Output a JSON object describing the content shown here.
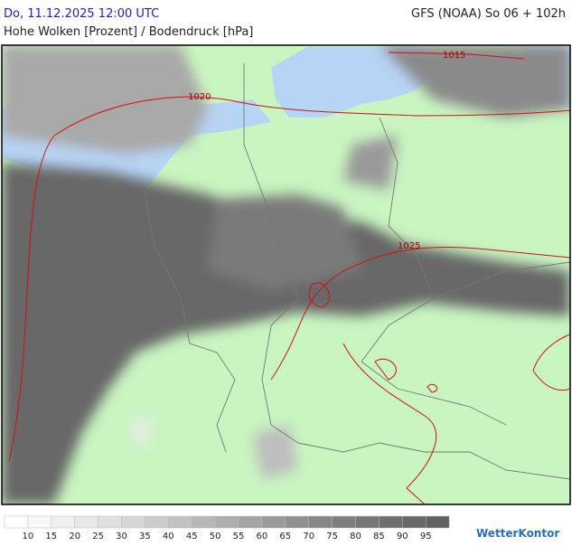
{
  "header": {
    "datetime": "Do, 11.12.2025 12:00 UTC",
    "model": "GFS (NOAA) So 06 + 102h",
    "subtitle": "Hohe Wolken [Prozent] / Bodendruck [hPa]"
  },
  "isobars": [
    {
      "label": "1015"
    },
    {
      "label": "1020"
    },
    {
      "label": "1025"
    }
  ],
  "legend": {
    "levels": [
      10,
      15,
      20,
      25,
      30,
      35,
      40,
      45,
      50,
      55,
      60,
      65,
      70,
      75,
      80,
      85,
      90,
      95
    ],
    "colors": [
      "#ffffff",
      "#f8f8f8",
      "#f0f0f0",
      "#e8e8e8",
      "#e0e0e0",
      "#d6d6d6",
      "#cccccc",
      "#c2c2c2",
      "#b8b8b8",
      "#aeaeae",
      "#a4a4a4",
      "#9a9a9a",
      "#909090",
      "#878787",
      "#7e7e7e",
      "#767676",
      "#6f6f6f",
      "#686868",
      "#626262"
    ]
  },
  "brand": "WetterKontor"
}
